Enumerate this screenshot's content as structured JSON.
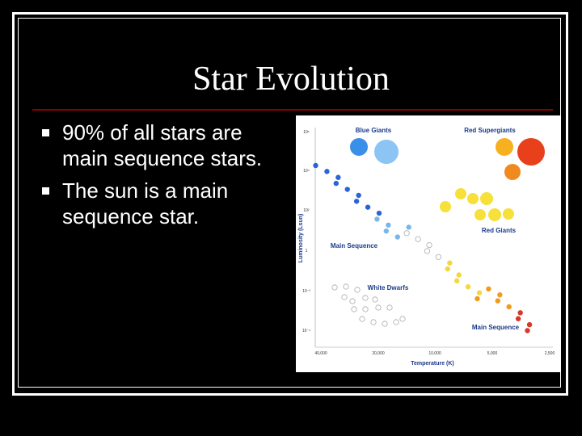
{
  "title": "Star Evolution",
  "bullets": [
    "90% of all stars are main sequence stars.",
    "The sun is a main sequence star."
  ],
  "figure": {
    "labels": {
      "blue_giants": "Blue Giants",
      "red_supergiants": "Red Supergiants",
      "red_giants": "Red Giants",
      "main_sequence_upper": "Main Sequence",
      "white_dwarfs": "White Dwarfs",
      "main_sequence_lower": "Main Sequence"
    },
    "y_axis_label": "Luminosity (Lsun)",
    "x_axis_label": "Temperature (K)",
    "y_tick_labels": [
      "10⁶",
      "10⁴",
      "10²",
      "1",
      "10⁻²",
      "10⁻⁴"
    ],
    "x_tick_labels": [
      "40,000",
      "20,000",
      "10,000",
      "5,000",
      "2,500"
    ]
  }
}
